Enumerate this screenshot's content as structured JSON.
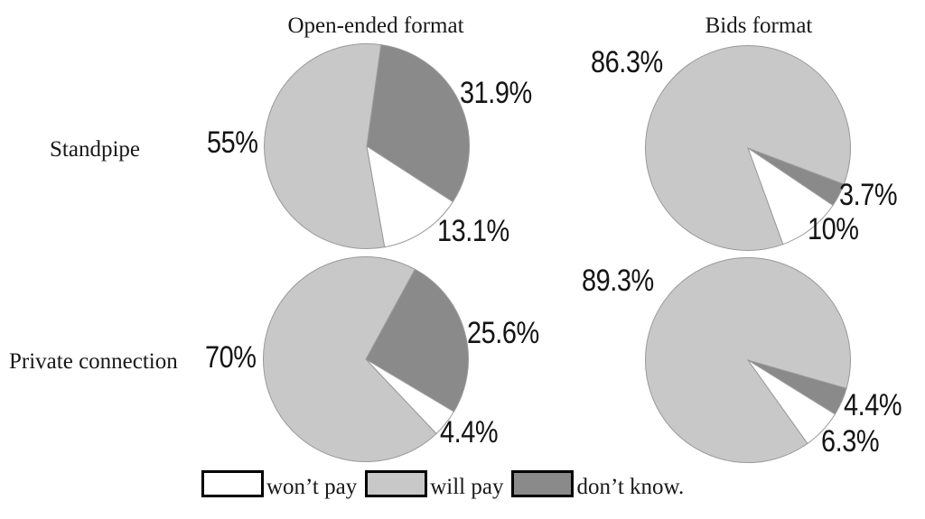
{
  "figure": {
    "columns": [
      "Open-ended format",
      "Bids format"
    ],
    "rows": [
      "Standpipe",
      "Private connection"
    ]
  },
  "legend": {
    "outline_color": "#9a9a9a",
    "entries": [
      {
        "label": "won’t pay",
        "color": "#ffffff"
      },
      {
        "label": "will pay",
        "color": "#c8c8c8"
      },
      {
        "label": "don’t know.",
        "color": "#8a8a8a"
      }
    ]
  },
  "chart_data": [
    {
      "type": "pie",
      "row": "Standpipe",
      "column": "Open-ended format",
      "start_angle_deg": 8,
      "slices": [
        {
          "label": "don’t know.",
          "value": 31.9,
          "display": "31.9%"
        },
        {
          "label": "won’t pay",
          "value": 13.1,
          "display": "13.1%"
        },
        {
          "label": "will pay",
          "value": 55,
          "display": "55%"
        }
      ]
    },
    {
      "type": "pie",
      "row": "Standpipe",
      "column": "Bids format",
      "start_angle_deg": 110.7,
      "slices": [
        {
          "label": "don’t know.",
          "value": 3.7,
          "display": "3.7%"
        },
        {
          "label": "won’t pay",
          "value": 10,
          "display": "10%"
        },
        {
          "label": "will pay",
          "value": 86.3,
          "display": "86.3%"
        }
      ]
    },
    {
      "type": "pie",
      "row": "Private connection",
      "column": "Open-ended format",
      "start_angle_deg": 28.6,
      "slices": [
        {
          "label": "don’t know.",
          "value": 25.6,
          "display": "25.6%"
        },
        {
          "label": "won’t pay",
          "value": 4.4,
          "display": "4.4%"
        },
        {
          "label": "will pay",
          "value": 70,
          "display": "70%"
        }
      ]
    },
    {
      "type": "pie",
      "row": "Private connection",
      "column": "Bids format",
      "start_angle_deg": 106,
      "slices": [
        {
          "label": "don’t know.",
          "value": 4.4,
          "display": "4.4%"
        },
        {
          "label": "won’t pay",
          "value": 6.3,
          "display": "6.3%"
        },
        {
          "label": "will pay",
          "value": 89.3,
          "display": "89.3%"
        }
      ]
    }
  ]
}
